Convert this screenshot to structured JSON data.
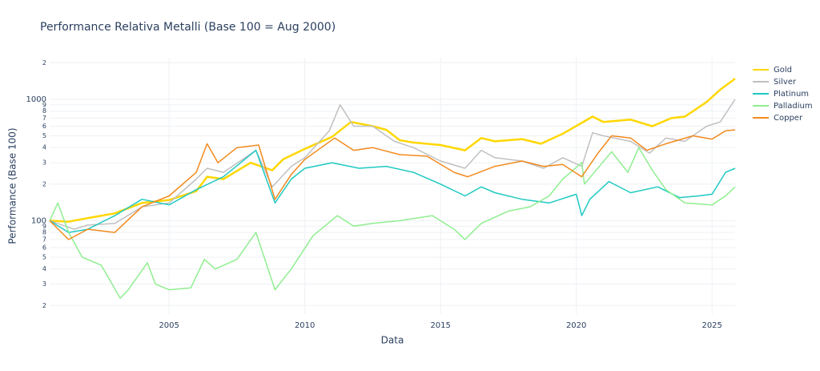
{
  "chart_data": {
    "type": "line",
    "title": "Performance Relativa Metalli (Base 100 = Aug 2000)",
    "x_label": "Data",
    "y_label": "Performance (Base 100)",
    "log_y": true,
    "grid": true,
    "legend": "top-right",
    "xlim": [
      2000.6,
      2025.85
    ],
    "xticks": [
      2005,
      2010,
      2015,
      2020,
      2025
    ],
    "ylim": [
      17,
      2200
    ],
    "yticks": [
      {
        "value": 20,
        "label": "2"
      },
      {
        "value": 30,
        "label": "3"
      },
      {
        "value": 40,
        "label": "4"
      },
      {
        "value": 50,
        "label": "5"
      },
      {
        "value": 60,
        "label": "6"
      },
      {
        "value": 70,
        "label": "7"
      },
      {
        "value": 80,
        "label": "8"
      },
      {
        "value": 90,
        "label": "9"
      },
      100,
      {
        "value": 200,
        "label": "2"
      },
      {
        "value": 300,
        "label": "3"
      },
      {
        "value": 400,
        "label": "4"
      },
      {
        "value": 500,
        "label": "5"
      },
      {
        "value": 600,
        "label": "6"
      },
      {
        "value": 700,
        "label": "7"
      },
      {
        "value": 800,
        "label": "8"
      },
      {
        "value": 900,
        "label": "9"
      },
      1000,
      {
        "value": 2000,
        "label": "2"
      }
    ],
    "series": [
      {
        "name": "Gold",
        "color": "#FFD700",
        "width": 2.5,
        "x": [
          2000.6,
          2001.3,
          2002,
          2003,
          2004,
          2005,
          2006,
          2006.4,
          2007,
          2008,
          2008.8,
          2009.2,
          2010,
          2011,
          2011.7,
          2012.5,
          2013,
          2013.5,
          2014,
          2015,
          2015.9,
          2016.5,
          2017,
          2018,
          2018.7,
          2019.5,
          2020.6,
          2021,
          2022,
          2022.8,
          2023.5,
          2024,
          2024.8,
          2025.3,
          2025.85
        ],
        "values": [
          100,
          98,
          105,
          115,
          140,
          148,
          175,
          230,
          220,
          300,
          260,
          320,
          390,
          490,
          650,
          600,
          560,
          460,
          440,
          420,
          380,
          480,
          450,
          470,
          430,
          520,
          720,
          650,
          680,
          600,
          700,
          720,
          950,
          1200,
          1480
        ]
      },
      {
        "name": "Silver",
        "color": "#C0C0C0",
        "width": 1.5,
        "x": [
          2000.6,
          2001.5,
          2002,
          2003,
          2004,
          2005,
          2006,
          2006.4,
          2007,
          2008.2,
          2008.8,
          2009.5,
          2010,
          2010.9,
          2011.3,
          2011.8,
          2012.5,
          2013.3,
          2014,
          2015,
          2015.9,
          2016.5,
          2017,
          2018,
          2018.8,
          2019.5,
          2020.2,
          2020.6,
          2021,
          2022,
          2022.7,
          2023.3,
          2024,
          2024.8,
          2025.3,
          2025.85
        ],
        "values": [
          100,
          85,
          92,
          95,
          130,
          140,
          220,
          270,
          250,
          380,
          190,
          280,
          330,
          550,
          900,
          600,
          600,
          450,
          400,
          310,
          270,
          380,
          330,
          310,
          270,
          330,
          280,
          530,
          500,
          450,
          360,
          480,
          450,
          600,
          650,
          1000
        ]
      },
      {
        "name": "Platinum",
        "color": "#20C9C2",
        "width": 1.5,
        "x": [
          2000.6,
          2001.3,
          2002,
          2003,
          2004,
          2005,
          2006,
          2007,
          2008.2,
          2008.9,
          2009.5,
          2010,
          2011,
          2012,
          2013,
          2014,
          2015,
          2015.9,
          2016.5,
          2017,
          2018,
          2019,
          2020,
          2020.2,
          2020.5,
          2021.2,
          2022,
          2023,
          2023.8,
          2024.5,
          2025,
          2025.5,
          2025.85
        ],
        "values": [
          100,
          80,
          85,
          110,
          150,
          135,
          180,
          230,
          380,
          140,
          220,
          270,
          300,
          270,
          280,
          250,
          200,
          160,
          190,
          170,
          150,
          140,
          165,
          110,
          150,
          210,
          170,
          190,
          155,
          160,
          165,
          250,
          270
        ]
      },
      {
        "name": "Palladium",
        "color": "#90EE90",
        "width": 1.5,
        "x": [
          2000.6,
          2000.9,
          2001.3,
          2001.8,
          2002.5,
          2003.2,
          2003.5,
          2004.2,
          2004.5,
          2005,
          2005.8,
          2006.3,
          2006.7,
          2007.5,
          2008.2,
          2008.9,
          2009.5,
          2010.3,
          2011.2,
          2011.8,
          2012.5,
          2013.5,
          2014.7,
          2015.5,
          2015.9,
          2016.5,
          2017.5,
          2018.3,
          2019,
          2019.5,
          2020.2,
          2020.3,
          2021.3,
          2021.9,
          2022.3,
          2022.8,
          2023.3,
          2024,
          2025,
          2025.5,
          2025.85
        ],
        "values": [
          100,
          140,
          80,
          50,
          43,
          23,
          27,
          45,
          30,
          27,
          28,
          48,
          40,
          48,
          80,
          27,
          40,
          75,
          110,
          90,
          95,
          100,
          110,
          85,
          70,
          95,
          120,
          130,
          160,
          220,
          300,
          200,
          370,
          250,
          400,
          260,
          180,
          140,
          135,
          160,
          190
        ]
      },
      {
        "name": "Copper",
        "color": "#F28A1E",
        "width": 1.5,
        "x": [
          2000.6,
          2001.3,
          2002,
          2003,
          2004,
          2005,
          2006,
          2006.4,
          2006.8,
          2007.5,
          2008.3,
          2008.9,
          2009.5,
          2010,
          2011.1,
          2011.8,
          2012.5,
          2013.5,
          2014.5,
          2015.5,
          2016,
          2017,
          2018,
          2018.8,
          2019.5,
          2020.2,
          2020.8,
          2021.3,
          2022,
          2022.6,
          2023.3,
          2024.3,
          2025,
          2025.5,
          2025.85
        ],
        "values": [
          100,
          70,
          85,
          80,
          130,
          160,
          250,
          430,
          300,
          400,
          420,
          150,
          240,
          320,
          480,
          380,
          400,
          350,
          340,
          250,
          230,
          280,
          310,
          280,
          290,
          230,
          360,
          500,
          480,
          380,
          430,
          500,
          470,
          550,
          560
        ]
      }
    ]
  }
}
